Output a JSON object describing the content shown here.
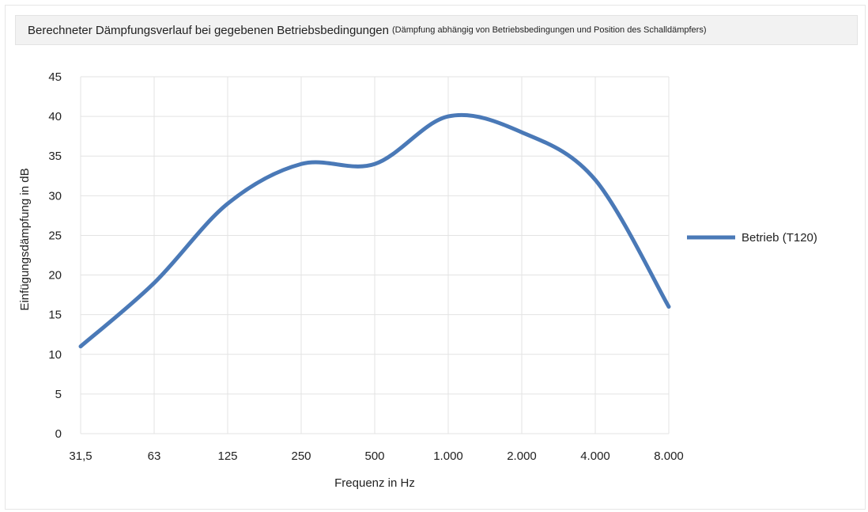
{
  "header": {
    "title": "Berechneter Dämpfungsverlauf bei gegebenen Betriebsbedingungen",
    "subtitle": "(Dämpfung abhängig von Betriebsbedingungen und Position des Schalldämpfers)"
  },
  "chart_data": {
    "type": "line",
    "categories": [
      "31,5",
      "63",
      "125",
      "250",
      "500",
      "1.000",
      "2.000",
      "4.000",
      "8.000"
    ],
    "xlabel": "Frequenz in Hz",
    "ylabel": "Einfügungsdämpfung in dB",
    "ylim": [
      0,
      45
    ],
    "yticks": [
      0,
      5,
      10,
      15,
      20,
      25,
      30,
      35,
      40,
      45
    ],
    "ytick_labels": [
      "0",
      "5",
      "10",
      "15",
      "20",
      "25",
      "30",
      "35",
      "40",
      "45"
    ],
    "grid": true,
    "smooth": true,
    "legend": "right",
    "series": [
      {
        "name": "Betrieb (T120)",
        "color": "#4a79b7",
        "values": [
          11,
          19,
          29,
          34,
          34,
          40,
          38,
          32,
          16
        ]
      }
    ]
  }
}
